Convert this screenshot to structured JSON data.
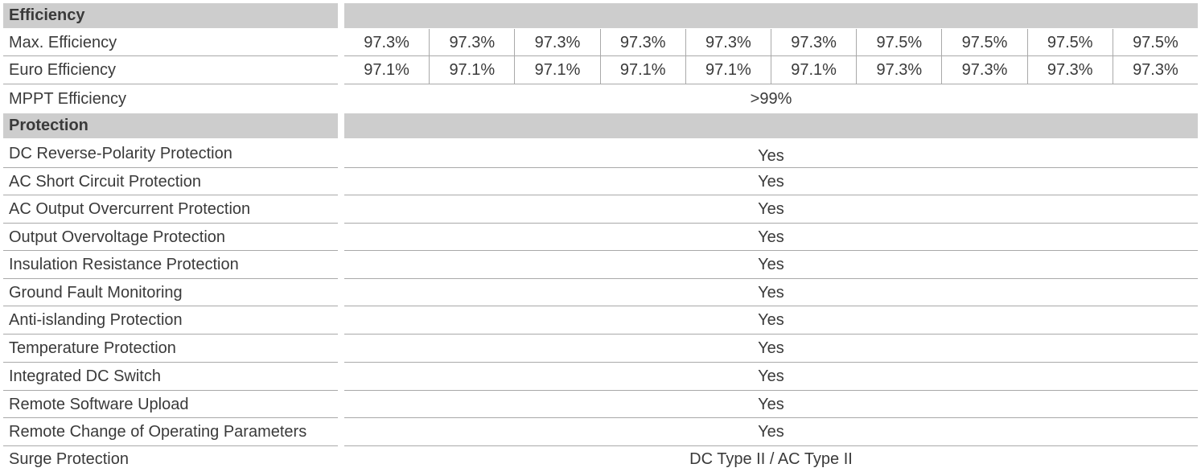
{
  "efficiency": {
    "header": "Efficiency",
    "rows": [
      {
        "label": "Max. Efficiency",
        "values": [
          "97.3%",
          "97.3%",
          "97.3%",
          "97.3%",
          "97.3%",
          "97.3%",
          "97.5%",
          "97.5%",
          "97.5%",
          "97.5%"
        ]
      },
      {
        "label": "Euro Efficiency",
        "values": [
          "97.1%",
          "97.1%",
          "97.1%",
          "97.1%",
          "97.1%",
          "97.1%",
          "97.3%",
          "97.3%",
          "97.3%",
          "97.3%"
        ]
      },
      {
        "label": "MPPT Efficiency",
        "value": ">99%"
      }
    ]
  },
  "protection": {
    "header": "Protection",
    "rows": [
      {
        "label": "DC Reverse-Polarity Protection",
        "value": "Yes"
      },
      {
        "label": "AC Short Circuit Protection",
        "value": "Yes"
      },
      {
        "label": "AC Output Overcurrent Protection",
        "value": "Yes"
      },
      {
        "label": "Output Overvoltage Protection",
        "value": "Yes"
      },
      {
        "label": "Insulation Resistance Protection",
        "value": "Yes"
      },
      {
        "label": "Ground Fault Monitoring",
        "value": "Yes"
      },
      {
        "label": "Anti-islanding Protection",
        "value": "Yes"
      },
      {
        "label": "Temperature Protection",
        "value": "Yes"
      },
      {
        "label": "Integrated DC Switch",
        "value": "Yes"
      },
      {
        "label": "Remote Software Upload",
        "value": "Yes"
      },
      {
        "label": "Remote Change of Operating Parameters",
        "value": "Yes"
      },
      {
        "label": "Surge Protection",
        "value": "DC Type II / AC Type II"
      }
    ]
  }
}
